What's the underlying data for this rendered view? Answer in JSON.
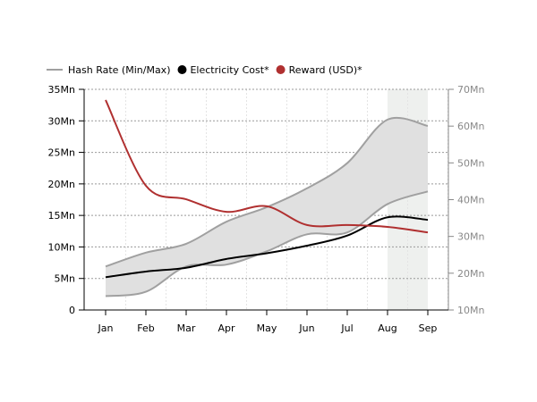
{
  "chart_data": {
    "type": "line",
    "categories": [
      "Jan",
      "Feb",
      "Mar",
      "Apr",
      "May",
      "Jun",
      "Jul",
      "Aug",
      "Sep"
    ],
    "legend_position": "top-left",
    "grid": true,
    "highlight_range": [
      "Aug",
      "Sep"
    ],
    "left_axis": {
      "ylim": [
        0,
        35
      ],
      "ticks": [
        "0",
        "5Mn",
        "10Mn",
        "15Mn",
        "20Mn",
        "25Mn",
        "30Mn",
        "35Mn"
      ],
      "tick_values": [
        0,
        5,
        10,
        15,
        20,
        25,
        30,
        35
      ]
    },
    "right_axis": {
      "ylim": [
        10,
        70
      ],
      "ticks": [
        "10Mn",
        "20Mn",
        "30Mn",
        "40Mn",
        "50Mn",
        "60Mn",
        "70Mn"
      ],
      "tick_values": [
        10,
        20,
        30,
        40,
        50,
        60,
        70
      ]
    },
    "series": [
      {
        "name": "Hash Rate (Min/Max)",
        "kind": "range",
        "axis": "left",
        "color": "#a0a0a0",
        "min": [
          2.2,
          2.9,
          6.9,
          7.2,
          9.3,
          12.0,
          12.3,
          16.8,
          18.8
        ],
        "max": [
          6.9,
          9.1,
          10.5,
          14.0,
          16.3,
          19.3,
          23.3,
          30.2,
          29.2
        ]
      },
      {
        "name": "Electricity Cost*",
        "kind": "line",
        "axis": "left",
        "color": "#000000",
        "values": [
          5.2,
          6.1,
          6.7,
          8.1,
          9.0,
          10.2,
          11.8,
          14.7,
          14.3
        ]
      },
      {
        "name": "Reward (USD)*",
        "kind": "line",
        "axis": "right",
        "color": "#b03030",
        "values": [
          67.1,
          43.8,
          40.1,
          36.7,
          38.2,
          33.1,
          33.1,
          32.6,
          31.1
        ]
      }
    ]
  }
}
